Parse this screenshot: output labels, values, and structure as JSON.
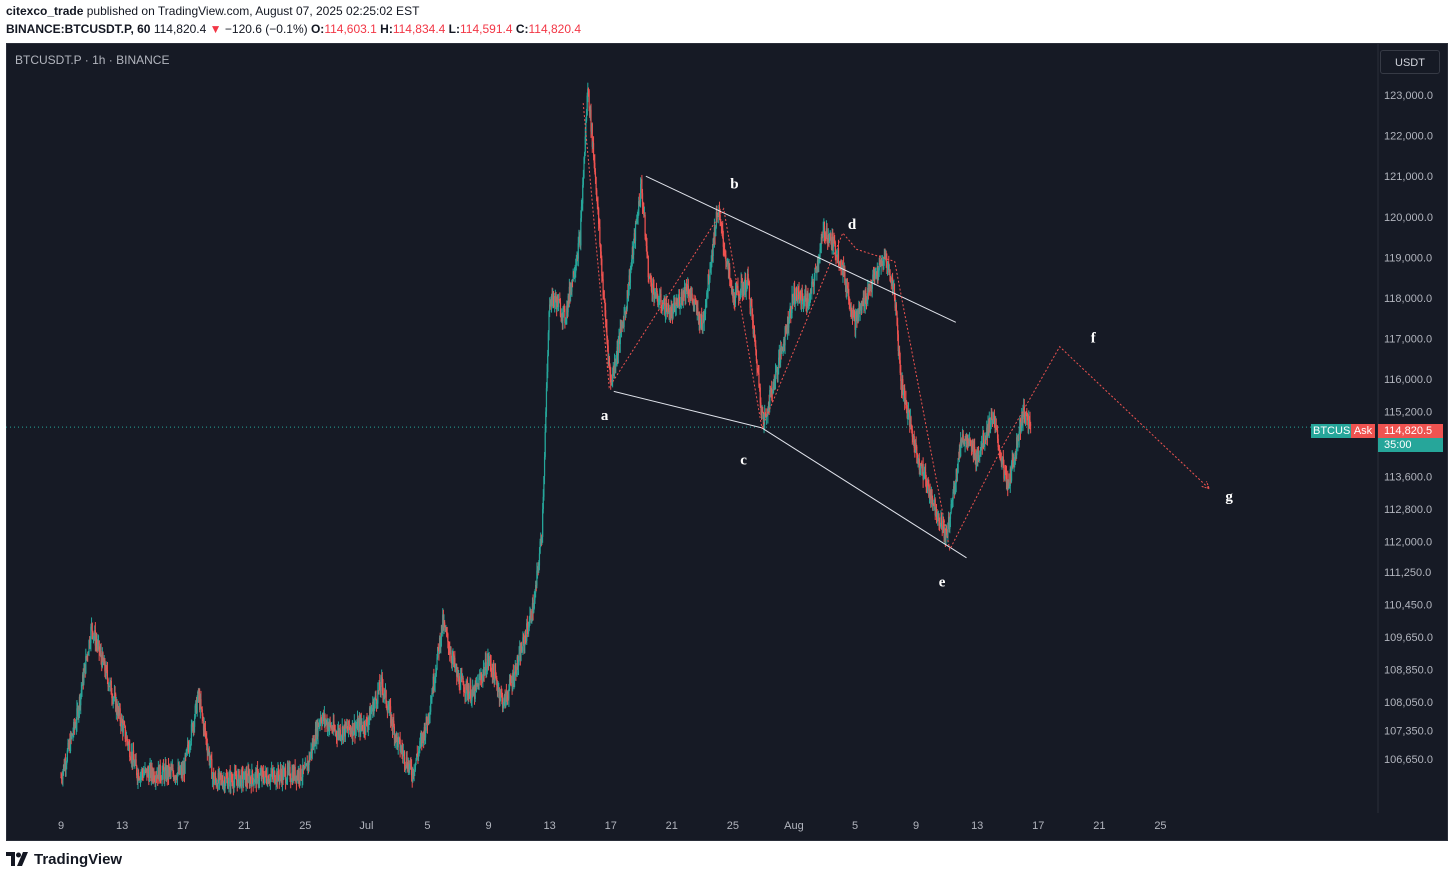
{
  "header": {
    "publisher": "citexco_trade",
    "published_text": "published on TradingView.com, August 07, 2025 02:25:02 EST",
    "instrument": "BINANCE:BTCUSDT.P, 60",
    "last": "114,820.4",
    "change": "−120.6 (−0.1%)",
    "open_label": "O:",
    "open": "114,603.1",
    "high_label": "H:",
    "high": "114,834.4",
    "low_label": "L:",
    "low": "114,591.4",
    "close_label": "C:",
    "close": "114,820.4"
  },
  "chart_title": "BTCUSDT.P · 1h · BINANCE",
  "currency_button": "USDT",
  "price_tags": {
    "symbol": "BTCUS",
    "ask_label": "Ask",
    "ask_price": "114,820.5",
    "countdown": "35:00"
  },
  "footer_logo": "TradingView",
  "colors": {
    "background": "#161a25",
    "up": "#26a69a",
    "down": "#ef5350",
    "trendline": "#e0e3eb",
    "projection": "#ef5350"
  },
  "chart_data": {
    "type": "candlestick",
    "y_tick_labels": [
      "123,000.0",
      "122,000.0",
      "121,000.0",
      "120,000.0",
      "119,000.0",
      "118,000.0",
      "117,000.0",
      "116,000.0",
      "115,200.0",
      "113,600.0",
      "112,800.0",
      "112,000.0",
      "111,250.0",
      "110,450.0",
      "109,650.0",
      "108,850.0",
      "108,050.0",
      "107,350.0",
      "106,650.0"
    ],
    "y_tick_values": [
      123000,
      122000,
      121000,
      120000,
      119000,
      118000,
      117000,
      116000,
      115200,
      113600,
      112800,
      112000,
      111250,
      110450,
      109650,
      108850,
      108050,
      107350,
      106650
    ],
    "x_tick_labels": [
      "9",
      "13",
      "17",
      "21",
      "25",
      "Jul",
      "5",
      "9",
      "13",
      "17",
      "21",
      "25",
      "Aug",
      "5",
      "9",
      "13",
      "17",
      "21",
      "25"
    ],
    "current_price": 114820.4,
    "path_anchors": [
      {
        "day": 0,
        "price": 106200
      },
      {
        "day": 1,
        "price": 107600
      },
      {
        "day": 2,
        "price": 109900
      },
      {
        "day": 3,
        "price": 108700
      },
      {
        "day": 4,
        "price": 107500
      },
      {
        "day": 5,
        "price": 106300
      },
      {
        "day": 8,
        "price": 106300
      },
      {
        "day": 9,
        "price": 108200
      },
      {
        "day": 10,
        "price": 106100
      },
      {
        "day": 16,
        "price": 106300
      },
      {
        "day": 17,
        "price": 107700
      },
      {
        "day": 18,
        "price": 107300
      },
      {
        "day": 20,
        "price": 107500
      },
      {
        "day": 21,
        "price": 108500
      },
      {
        "day": 22,
        "price": 107100
      },
      {
        "day": 23,
        "price": 106300
      },
      {
        "day": 24,
        "price": 107600
      },
      {
        "day": 25,
        "price": 110000
      },
      {
        "day": 26,
        "price": 108600
      },
      {
        "day": 27,
        "price": 108200
      },
      {
        "day": 28,
        "price": 109100
      },
      {
        "day": 29,
        "price": 108000
      },
      {
        "day": 30,
        "price": 109100
      },
      {
        "day": 31,
        "price": 110500
      },
      {
        "day": 31.5,
        "price": 112300
      },
      {
        "day": 32,
        "price": 118000
      },
      {
        "day": 32.5,
        "price": 117900
      },
      {
        "day": 33,
        "price": 117500
      },
      {
        "day": 34,
        "price": 119500
      },
      {
        "day": 34.5,
        "price": 123200
      },
      {
        "day": 35,
        "price": 121000
      },
      {
        "day": 35.5,
        "price": 118200
      },
      {
        "day": 36,
        "price": 115900
      },
      {
        "day": 37,
        "price": 117800
      },
      {
        "day": 38,
        "price": 120800
      },
      {
        "day": 38.5,
        "price": 118500
      },
      {
        "day": 39,
        "price": 118000
      },
      {
        "day": 40,
        "price": 117600
      },
      {
        "day": 41,
        "price": 118300
      },
      {
        "day": 42,
        "price": 117300
      },
      {
        "day": 43,
        "price": 120200
      },
      {
        "day": 44,
        "price": 118000
      },
      {
        "day": 45,
        "price": 118400
      },
      {
        "day": 46,
        "price": 114900
      },
      {
        "day": 47,
        "price": 116400
      },
      {
        "day": 48,
        "price": 118100
      },
      {
        "day": 49,
        "price": 117900
      },
      {
        "day": 50,
        "price": 119700
      },
      {
        "day": 51,
        "price": 119000
      },
      {
        "day": 52,
        "price": 117400
      },
      {
        "day": 53,
        "price": 118300
      },
      {
        "day": 54,
        "price": 119000
      },
      {
        "day": 54.6,
        "price": 118100
      },
      {
        "day": 55,
        "price": 116000
      },
      {
        "day": 56,
        "price": 114200
      },
      {
        "day": 57,
        "price": 113100
      },
      {
        "day": 58,
        "price": 112100
      },
      {
        "day": 59,
        "price": 114600
      },
      {
        "day": 60,
        "price": 114100
      },
      {
        "day": 61,
        "price": 115100
      },
      {
        "day": 62,
        "price": 113300
      },
      {
        "day": 63,
        "price": 115200
      },
      {
        "day": 63.5,
        "price": 114800
      }
    ],
    "trendlines": [
      {
        "from": {
          "day": 38.3,
          "price": 121000
        },
        "to": {
          "day": 58.6,
          "price": 117400
        }
      },
      {
        "from": {
          "day": 36.2,
          "price": 115700
        },
        "to": {
          "day": 45.9,
          "price": 114800
        }
      },
      {
        "from": {
          "day": 45.9,
          "price": 114800
        },
        "to": {
          "day": 59.3,
          "price": 111600
        }
      }
    ],
    "projection_path": [
      {
        "day": 34.2,
        "price": 122800
      },
      {
        "day": 35.9,
        "price": 115800
      },
      {
        "day": 43.4,
        "price": 120200
      },
      {
        "day": 45.9,
        "price": 114800
      },
      {
        "day": 51.2,
        "price": 119600
      },
      {
        "day": 52.1,
        "price": 119200
      },
      {
        "day": 54.6,
        "price": 118900
      },
      {
        "day": 58.2,
        "price": 111800
      },
      {
        "day": 61.6,
        "price": 114300
      },
      {
        "day": 65.4,
        "price": 116800
      },
      {
        "day": 75.2,
        "price": 113300
      }
    ],
    "wave_labels": [
      {
        "text": "a",
        "day": 35.6,
        "price": 115000
      },
      {
        "text": "b",
        "day": 44.1,
        "price": 120700
      },
      {
        "text": "c",
        "day": 44.7,
        "price": 113900
      },
      {
        "text": "d",
        "day": 51.8,
        "price": 119700
      },
      {
        "text": "e",
        "day": 57.7,
        "price": 110900
      },
      {
        "text": "f",
        "day": 67.6,
        "price": 116900
      },
      {
        "text": "g",
        "day": 76.5,
        "price": 113000
      }
    ]
  }
}
